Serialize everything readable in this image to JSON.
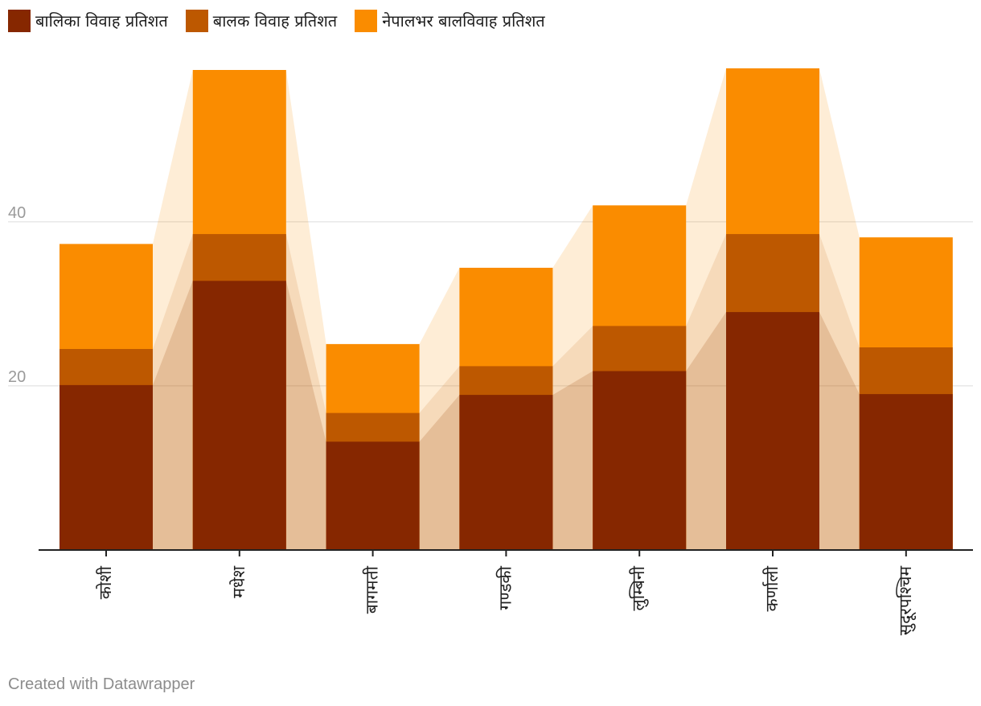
{
  "chart_data": {
    "type": "bar",
    "stacked": false,
    "categories": [
      "कोशी",
      "मधेश",
      "बागमती",
      "गण्डकी",
      "लुम्बिनी",
      "कर्णाली",
      "सुदूरपश्चिम"
    ],
    "series": [
      {
        "name": "बालिका विवाह प्रतिशत",
        "color": "#862700",
        "values": [
          20.1,
          32.8,
          13.2,
          18.9,
          21.8,
          29.0,
          19.0
        ]
      },
      {
        "name": "बालक विवाह प्रतिशत",
        "color": "#bd5800",
        "values": [
          24.5,
          38.5,
          16.7,
          22.4,
          27.3,
          38.5,
          24.7
        ]
      },
      {
        "name": "नेपालभर बालविवाह प्रतिशत",
        "color": "#fa8c00",
        "values": [
          37.3,
          58.5,
          25.1,
          34.4,
          42.0,
          58.7,
          38.1
        ]
      }
    ],
    "y_ticks": [
      20,
      40
    ],
    "ylim": [
      0,
      58.7
    ],
    "grid": true,
    "legend_position": "top-left"
  },
  "footer": {
    "credit": "Created with Datawrapper"
  }
}
